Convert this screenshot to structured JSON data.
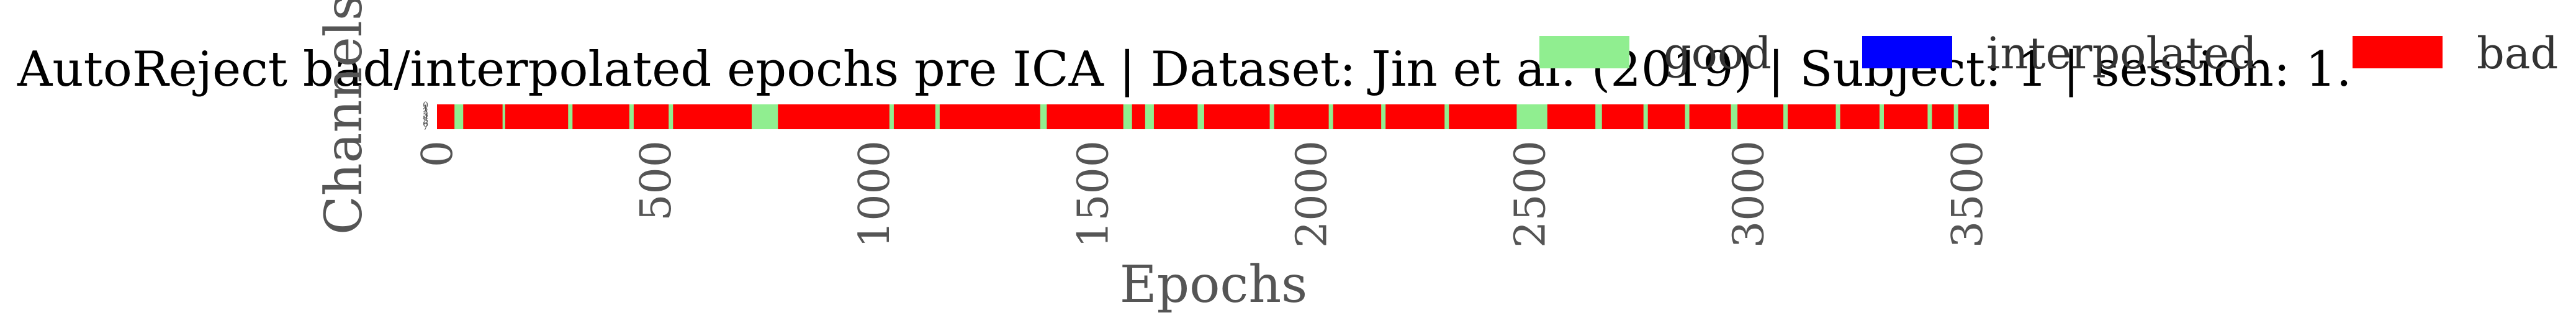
{
  "chart_data": {
    "type": "heatmap",
    "title": "AutoReject bad/interpolated epochs pre ICA | Dataset: Jin et al. (2019) | Subject: 1 | session: 1.",
    "xlabel": "Epochs",
    "ylabel": "Channels",
    "xlim": [
      0,
      3550
    ],
    "x_ticks": [
      "0",
      "500",
      "1000",
      "1500",
      "2000",
      "2500",
      "3000",
      "3500"
    ],
    "n_channels": 8,
    "grid": false,
    "legend_position": "top-right",
    "legend": [
      {
        "label": "good",
        "color": "#90ee90"
      },
      {
        "label": "interpolated",
        "color": "#0000ff"
      },
      {
        "label": "bad",
        "color": "#ff0000"
      }
    ],
    "background_status": "bad",
    "good_epoch_ranges": [
      [
        40,
        60
      ],
      [
        150,
        156
      ],
      [
        300,
        310
      ],
      [
        440,
        450
      ],
      [
        530,
        540
      ],
      [
        720,
        780
      ],
      [
        1035,
        1045
      ],
      [
        1140,
        1150
      ],
      [
        1380,
        1395
      ],
      [
        1570,
        1590
      ],
      [
        1620,
        1640
      ],
      [
        1740,
        1755
      ],
      [
        1905,
        1915
      ],
      [
        2040,
        2050
      ],
      [
        2160,
        2170
      ],
      [
        2305,
        2315
      ],
      [
        2470,
        2540
      ],
      [
        2650,
        2665
      ],
      [
        2760,
        2770
      ],
      [
        2855,
        2865
      ],
      [
        2960,
        2975
      ],
      [
        3080,
        3090
      ],
      [
        3200,
        3210
      ],
      [
        3300,
        3310
      ],
      [
        3410,
        3420
      ],
      [
        3470,
        3480
      ]
    ]
  }
}
